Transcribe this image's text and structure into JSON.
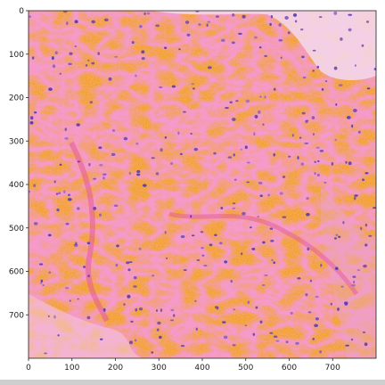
{
  "figure": {
    "type": "image",
    "description_colors": {
      "background_tissue": "#f29a2e",
      "stroma_pink": "#e8529a",
      "light_region": "#f4d6ea",
      "nuclei": "#5b3fb0"
    },
    "x_axis": {
      "ticks": [
        0,
        100,
        200,
        300,
        400,
        500,
        600,
        700
      ],
      "range": [
        0,
        800
      ]
    },
    "y_axis": {
      "ticks": [
        0,
        100,
        200,
        300,
        400,
        500,
        600,
        700
      ],
      "range": [
        0,
        800
      ],
      "inverted": true
    }
  }
}
